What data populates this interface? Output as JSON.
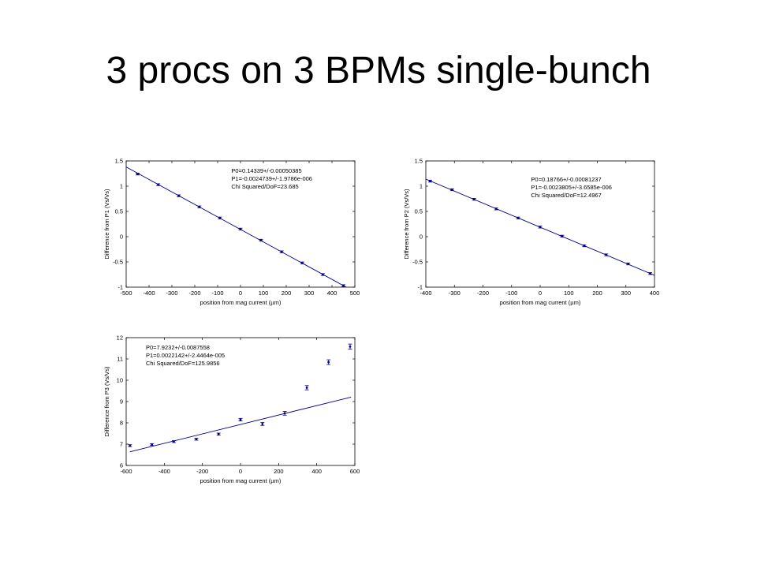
{
  "slide": {
    "title": "3 procs on 3 BPMs single-bunch"
  },
  "colors": {
    "background": "#ffffff",
    "data": "#00008b",
    "axes": "#000000"
  },
  "chart_data": [
    {
      "type": "scatter",
      "fit_line": true,
      "xlabel": "position from mag current (µm)",
      "ylabel": "Difference from P1 (Vs/Vs)",
      "xlim": [
        -500,
        500
      ],
      "ylim": [
        -1,
        1.5
      ],
      "xticks": [
        -500,
        -400,
        -300,
        -200,
        -100,
        0,
        100,
        200,
        300,
        400,
        500
      ],
      "yticks": [
        -1,
        -0.5,
        0,
        0.5,
        1,
        1.5
      ],
      "annotations": [
        "P0=0.14339+/-0.00050385",
        "P1=-0.0024739+/-1.9786e-006",
        "Chi Squared/DoF=23.685"
      ],
      "fit": {
        "p0": 0.14339,
        "p1": -0.0024739
      },
      "series": [
        {
          "x": [
            -450,
            -360,
            -270,
            -180,
            -90,
            0,
            90,
            180,
            270,
            360,
            450
          ],
          "y": [
            1.24,
            1.03,
            0.81,
            0.59,
            0.37,
            0.15,
            -0.07,
            -0.3,
            -0.52,
            -0.75,
            -0.97
          ],
          "err": [
            0.01,
            0.01,
            0.01,
            0.01,
            0.01,
            0.01,
            0.01,
            0.01,
            0.01,
            0.01,
            0.01
          ]
        }
      ]
    },
    {
      "type": "scatter",
      "fit_line": true,
      "xlabel": "position from mag current (µm)",
      "ylabel": "Difference from P2 (Vs/Vs)",
      "xlim": [
        -400,
        400
      ],
      "ylim": [
        -1,
        1.5
      ],
      "xticks": [
        -400,
        -300,
        -200,
        -100,
        0,
        100,
        200,
        300,
        400
      ],
      "yticks": [
        -1,
        -0.5,
        0,
        0.5,
        1,
        1.5
      ],
      "annotations": [
        "P0=0.18766+/-0.00081237",
        "P1=-0.0023805+/-3.6585e-006",
        "Chi Squared/DoF=12.4967"
      ],
      "fit": {
        "p0": 0.18766,
        "p1": -0.0023805
      },
      "series": [
        {
          "x": [
            -385,
            -308,
            -231,
            -154,
            -77,
            0,
            77,
            154,
            231,
            308,
            385
          ],
          "y": [
            1.1,
            0.93,
            0.74,
            0.55,
            0.37,
            0.19,
            0.01,
            -0.18,
            -0.36,
            -0.54,
            -0.73
          ],
          "err": [
            0.01,
            0.01,
            0.01,
            0.01,
            0.01,
            0.01,
            0.01,
            0.01,
            0.01,
            0.01,
            0.01
          ]
        }
      ]
    },
    {
      "type": "scatter",
      "fit_line": true,
      "xlabel": "position from mag current (µm)",
      "ylabel": "Difference from P3 (Vs/Vs)",
      "xlim": [
        -600,
        600
      ],
      "ylim": [
        6,
        12
      ],
      "xticks": [
        -600,
        -400,
        -200,
        0,
        200,
        400,
        600
      ],
      "yticks": [
        6,
        7,
        8,
        9,
        10,
        11,
        12
      ],
      "annotations": [
        "P0=7.9232+/-0.0087558",
        "P1=0.0022142+/-2.4464e-005",
        "Chi Squared/DoF=125.9856"
      ],
      "fit": {
        "p0": 7.9232,
        "p1": 0.0022142
      },
      "series": [
        {
          "x": [
            -580,
            -465,
            -350,
            -232,
            -115,
            0,
            115,
            232,
            348,
            462,
            575
          ],
          "y": [
            6.93,
            6.98,
            7.12,
            7.23,
            7.47,
            8.15,
            7.95,
            8.45,
            9.65,
            10.85,
            11.58
          ],
          "err": [
            0.03,
            0.03,
            0.04,
            0.04,
            0.05,
            0.06,
            0.07,
            0.09,
            0.1,
            0.11,
            0.12
          ]
        }
      ]
    }
  ]
}
